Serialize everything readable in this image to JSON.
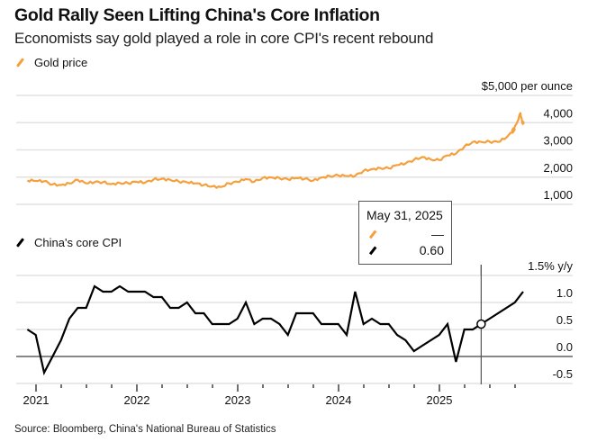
{
  "header": {
    "title": "Gold Rally Seen Lifting China's Core Inflation",
    "subtitle": "Economists say gold played a role in core CPI's recent rebound"
  },
  "colors": {
    "gold": "#F5A03C",
    "cpi": "#000000",
    "grid": "#e2e2e2",
    "zero_line": "#777777"
  },
  "tooltip": {
    "date": "May 31, 2025",
    "gold_value": "—",
    "cpi_value": "0.60"
  },
  "source": "Source: Bloomberg, China's National Bureau of Statistics",
  "chart_data": [
    {
      "type": "line",
      "legend": "Gold price",
      "unit_label": "$5,000 per ounce",
      "yticks": [
        "$5,000 per ounce",
        "4,000",
        "3,000",
        "2,000",
        "1,000"
      ],
      "ytick_values": [
        5000,
        4000,
        3000,
        2000,
        1000
      ],
      "ylim": [
        1000,
        5000
      ],
      "grid": true,
      "x": [
        "2020-11",
        "2020-12",
        "2021-01",
        "2021-02",
        "2021-03",
        "2021-04",
        "2021-05",
        "2021-06",
        "2021-07",
        "2021-08",
        "2021-09",
        "2021-10",
        "2021-11",
        "2021-12",
        "2022-01",
        "2022-02",
        "2022-03",
        "2022-04",
        "2022-05",
        "2022-06",
        "2022-07",
        "2022-08",
        "2022-09",
        "2022-10",
        "2022-11",
        "2022-12",
        "2023-01",
        "2023-02",
        "2023-03",
        "2023-04",
        "2023-05",
        "2023-06",
        "2023-07",
        "2023-08",
        "2023-09",
        "2023-10",
        "2023-11",
        "2023-12",
        "2024-01",
        "2024-02",
        "2024-03",
        "2024-04",
        "2024-05",
        "2024-06",
        "2024-07",
        "2024-08",
        "2024-09",
        "2024-10",
        "2024-11",
        "2024-12",
        "2025-01",
        "2025-02",
        "2025-03",
        "2025-04",
        "2025-05",
        "2025-06",
        "2025-07",
        "2025-08",
        "2025-09",
        "2025-09-20",
        "2025-10-05",
        "2025-10-20",
        "2025-10-27",
        "2025-11-03"
      ],
      "series": [
        {
          "name": "Gold price",
          "values": [
            1880,
            1860,
            1850,
            1730,
            1710,
            1770,
            1900,
            1770,
            1815,
            1815,
            1745,
            1785,
            1775,
            1830,
            1795,
            1910,
            1940,
            1900,
            1840,
            1810,
            1770,
            1710,
            1660,
            1635,
            1770,
            1825,
            1930,
            1830,
            1970,
            1990,
            1960,
            1920,
            1965,
            1940,
            1870,
            1985,
            2035,
            2065,
            2040,
            2045,
            2230,
            2290,
            2330,
            2325,
            2445,
            2500,
            2635,
            2740,
            2650,
            2625,
            2800,
            2860,
            3120,
            3290,
            3290,
            3300,
            3290,
            3450,
            3750,
            3700,
            3950,
            4350,
            3980,
            4000
          ]
        }
      ]
    },
    {
      "type": "line",
      "legend": "China's core CPI",
      "unit_label": "1.5% y/y",
      "yticks": [
        "1.5% y/y",
        "1.0",
        "0.5",
        "0.0",
        "-0.5"
      ],
      "ytick_values": [
        1.5,
        1.0,
        0.5,
        0.0,
        -0.5
      ],
      "ylim": [
        -0.5,
        1.5
      ],
      "grid": true,
      "xticks": [
        "2021",
        "2022",
        "2023",
        "2024",
        "2025"
      ],
      "highlight": {
        "x": "2025-05",
        "y": 0.6
      },
      "x": [
        "2020-11",
        "2020-12",
        "2021-01",
        "2021-02",
        "2021-03",
        "2021-04",
        "2021-05",
        "2021-06",
        "2021-07",
        "2021-08",
        "2021-09",
        "2021-10",
        "2021-11",
        "2021-12",
        "2022-01",
        "2022-02",
        "2022-03",
        "2022-04",
        "2022-05",
        "2022-06",
        "2022-07",
        "2022-08",
        "2022-09",
        "2022-10",
        "2022-11",
        "2022-12",
        "2023-01",
        "2023-02",
        "2023-03",
        "2023-04",
        "2023-05",
        "2023-06",
        "2023-07",
        "2023-08",
        "2023-09",
        "2023-10",
        "2023-11",
        "2023-12",
        "2024-01",
        "2024-02",
        "2024-03",
        "2024-04",
        "2024-05",
        "2024-06",
        "2024-07",
        "2024-08",
        "2024-09",
        "2024-10",
        "2024-11",
        "2024-12",
        "2025-01",
        "2025-02",
        "2025-03",
        "2025-04",
        "2025-05",
        "2025-09",
        "2025-10"
      ],
      "series": [
        {
          "name": "China's core CPI",
          "values": [
            0.5,
            0.4,
            -0.3,
            0.0,
            0.3,
            0.7,
            0.9,
            0.9,
            1.3,
            1.2,
            1.2,
            1.3,
            1.2,
            1.2,
            1.2,
            1.1,
            1.1,
            0.9,
            0.9,
            1.0,
            0.8,
            0.8,
            0.6,
            0.6,
            0.6,
            0.7,
            1.0,
            0.6,
            0.7,
            0.7,
            0.6,
            0.4,
            0.8,
            0.8,
            0.8,
            0.6,
            0.6,
            0.6,
            0.4,
            1.2,
            0.6,
            0.7,
            0.6,
            0.6,
            0.4,
            0.3,
            0.1,
            0.2,
            0.3,
            0.4,
            0.6,
            -0.1,
            0.5,
            0.5,
            0.6,
            1.0,
            1.2
          ]
        }
      ]
    }
  ]
}
